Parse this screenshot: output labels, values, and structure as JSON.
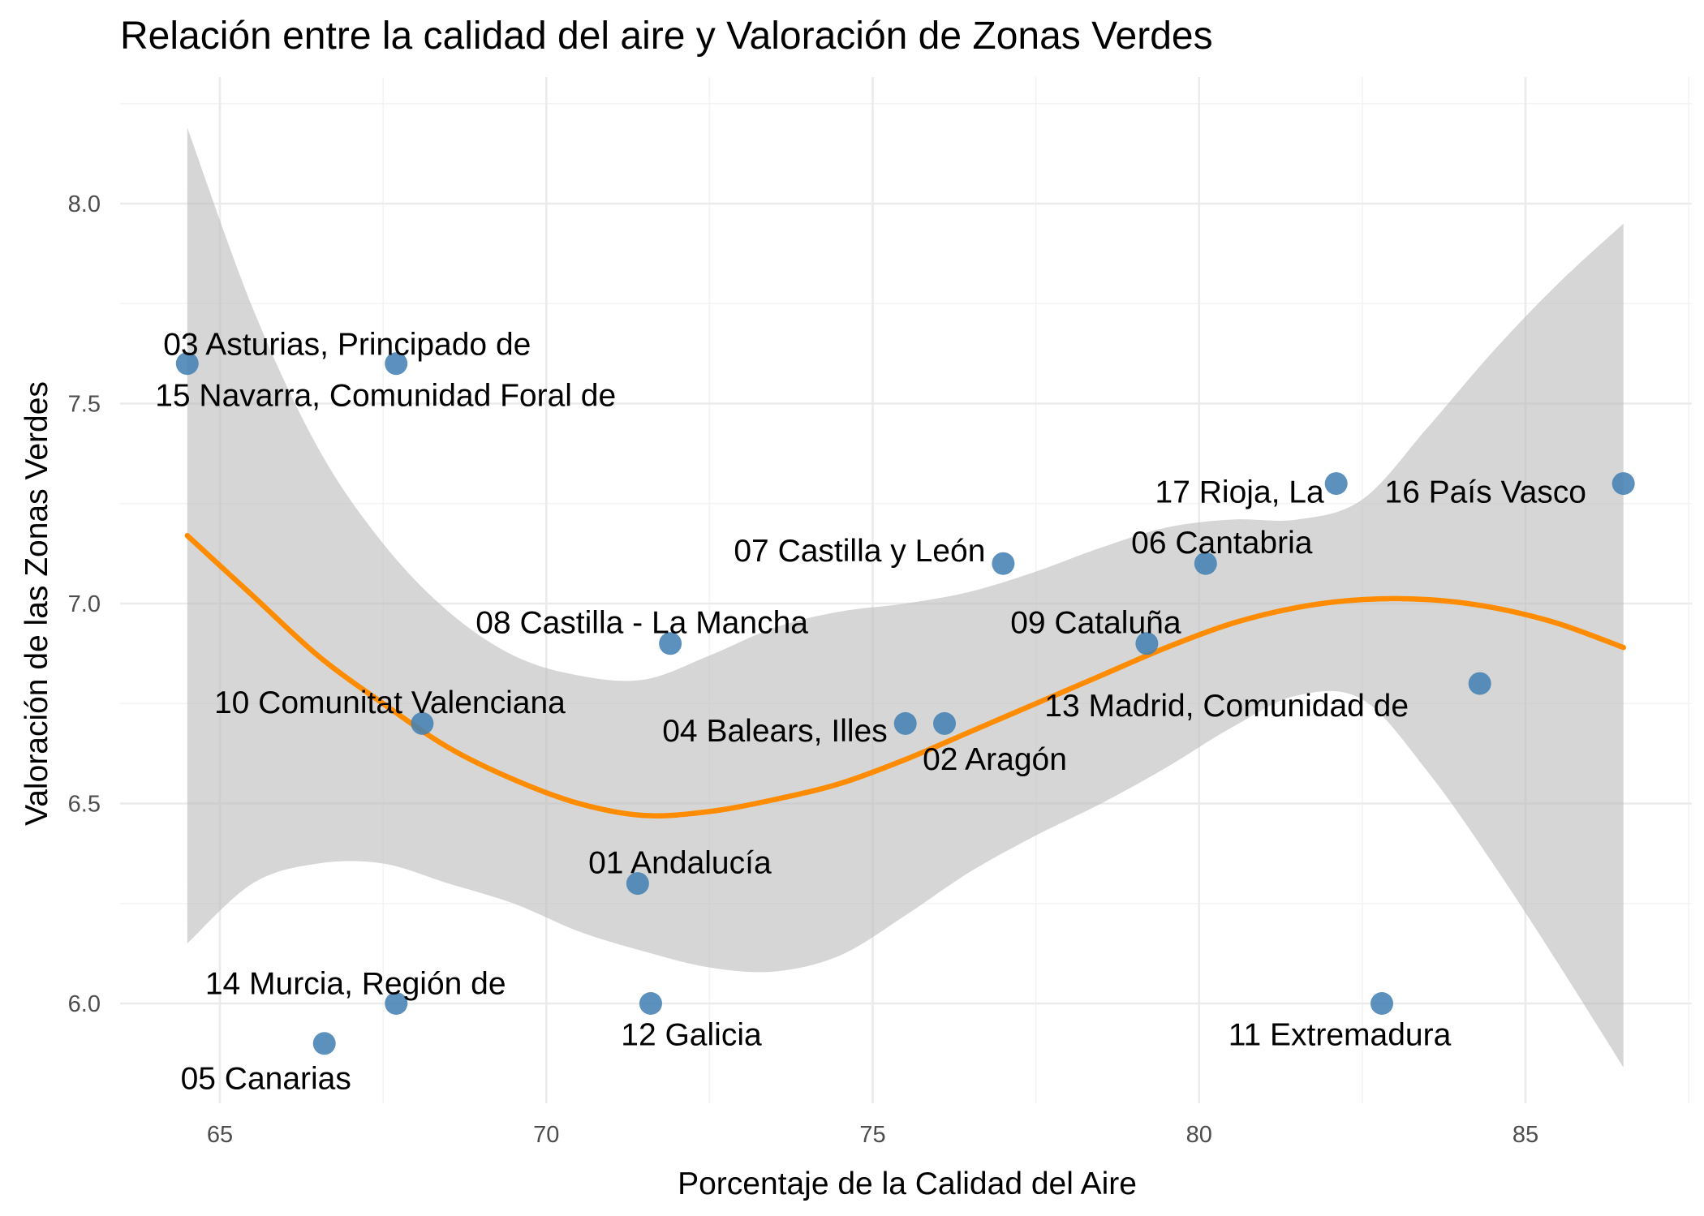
{
  "chart_data": {
    "type": "scatter",
    "title": "Relación entre la calidad del aire y Valoración de Zonas Verdes",
    "xlabel": "Porcentaje de la Calidad del Aire",
    "ylabel": "Valoración de las Zonas Verdes",
    "xlim": [
      63.5,
      87.5
    ],
    "ylim": [
      5.74,
      8.25
    ],
    "x_ticks": [
      65,
      70,
      75,
      80,
      85
    ],
    "x_tick_labels": [
      "65",
      "70",
      "75",
      "80",
      "85"
    ],
    "y_ticks": [
      6.0,
      6.5,
      7.0,
      7.5,
      8.0
    ],
    "y_tick_labels": [
      "6.0",
      "6.5",
      "7.0",
      "7.5",
      "8.0"
    ],
    "grid": true,
    "legend": "none",
    "point_color": "#4682B4",
    "smooth_color": "#FF8C00",
    "ribbon_color": "#bdbdbd",
    "points": [
      {
        "label": "01 Andalucía",
        "x": 71.4,
        "y": 6.3
      },
      {
        "label": "02 Aragón",
        "x": 76.1,
        "y": 6.7
      },
      {
        "label": "03 Asturias, Principado de",
        "x": 64.5,
        "y": 7.6
      },
      {
        "label": "04 Balears, Illes",
        "x": 75.5,
        "y": 6.7
      },
      {
        "label": "05 Canarias",
        "x": 66.6,
        "y": 5.9
      },
      {
        "label": "06 Cantabria",
        "x": 80.1,
        "y": 7.1
      },
      {
        "label": "07 Castilla y León",
        "x": 77.0,
        "y": 7.1
      },
      {
        "label": "08 Castilla - La Mancha",
        "x": 71.9,
        "y": 6.9
      },
      {
        "label": "09 Cataluña",
        "x": 79.2,
        "y": 6.9
      },
      {
        "label": "10 Comunitat Valenciana",
        "x": 68.1,
        "y": 6.7
      },
      {
        "label": "11 Extremadura",
        "x": 82.8,
        "y": 6.0
      },
      {
        "label": "12 Galicia",
        "x": 71.6,
        "y": 6.0
      },
      {
        "label": "13 Madrid, Comunidad de",
        "x": 84.3,
        "y": 6.8
      },
      {
        "label": "14 Murcia, Región de",
        "x": 67.7,
        "y": 6.0
      },
      {
        "label": "15 Navarra, Comunidad Foral de",
        "x": 67.7,
        "y": 7.6
      },
      {
        "label": "16 País Vasco",
        "x": 86.5,
        "y": 7.3
      },
      {
        "label": "17 Rioja, La",
        "x": 82.1,
        "y": 7.3
      }
    ],
    "smooth": {
      "x": [
        64.5,
        65.5,
        66.5,
        67.5,
        68.5,
        69.5,
        70.5,
        71.5,
        72.5,
        73.5,
        74.5,
        75.5,
        76.5,
        77.5,
        78.5,
        79.5,
        80.5,
        81.5,
        82.5,
        83.5,
        84.5,
        85.5,
        86.5
      ],
      "y": [
        7.17,
        7.02,
        6.87,
        6.75,
        6.64,
        6.56,
        6.5,
        6.47,
        6.48,
        6.51,
        6.55,
        6.61,
        6.68,
        6.75,
        6.82,
        6.89,
        6.95,
        6.99,
        7.01,
        7.01,
        6.99,
        6.95,
        6.89
      ],
      "lower": [
        6.15,
        6.3,
        6.35,
        6.35,
        6.3,
        6.25,
        6.18,
        6.13,
        6.09,
        6.08,
        6.12,
        6.22,
        6.33,
        6.42,
        6.5,
        6.59,
        6.69,
        6.77,
        6.76,
        6.58,
        6.35,
        6.1,
        5.84
      ],
      "upper": [
        8.19,
        7.74,
        7.39,
        7.15,
        6.98,
        6.87,
        6.82,
        6.81,
        6.87,
        6.94,
        6.98,
        7.0,
        7.03,
        7.08,
        7.14,
        7.19,
        7.21,
        7.21,
        7.26,
        7.44,
        7.63,
        7.8,
        7.95
      ]
    }
  }
}
